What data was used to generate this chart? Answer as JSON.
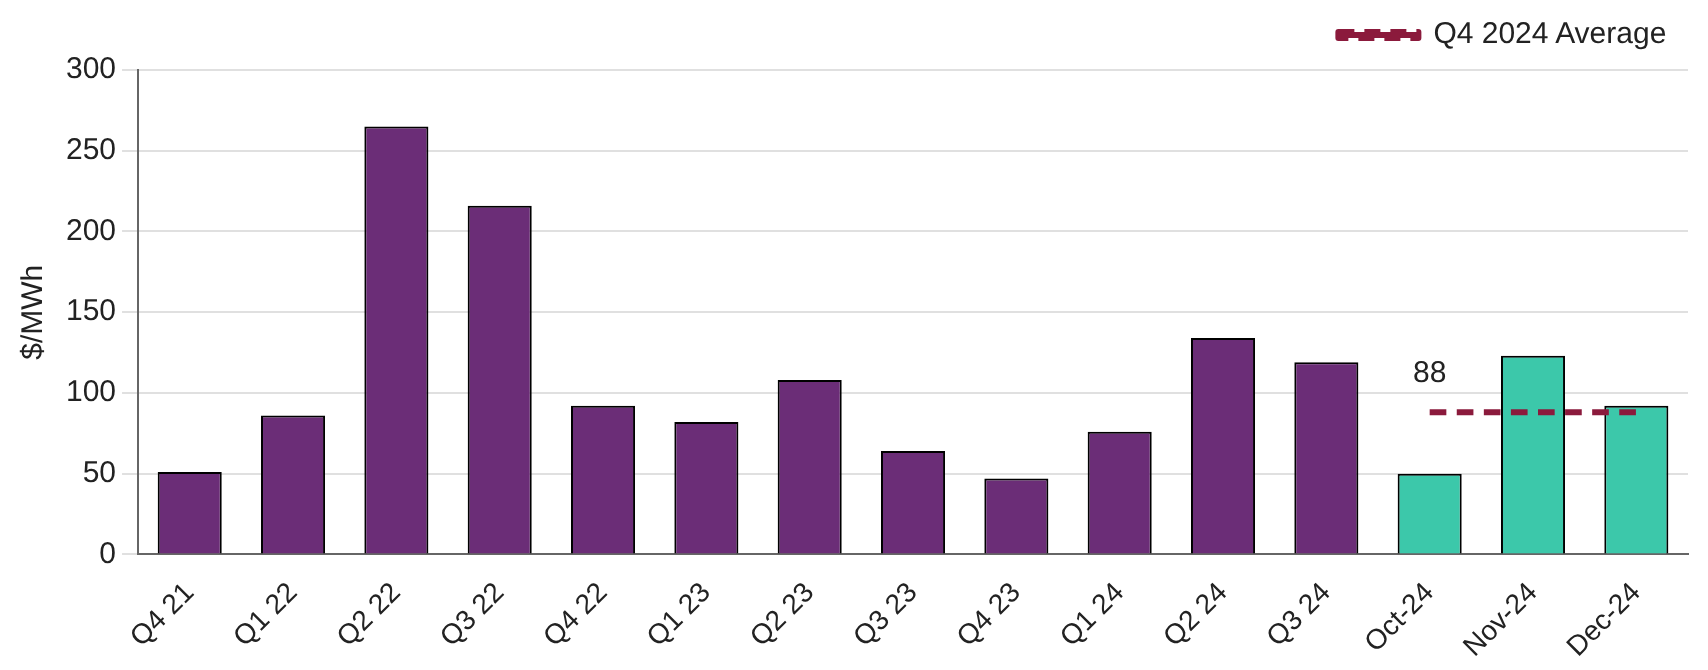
{
  "chart_data": {
    "type": "bar",
    "ylabel": "$/MWh",
    "categories": [
      "Q4 21",
      "Q1 22",
      "Q2 22",
      "Q3 22",
      "Q4 22",
      "Q1 23",
      "Q2 23",
      "Q3 23",
      "Q4 23",
      "Q1 24",
      "Q2 24",
      "Q3 24",
      "Oct-24",
      "Nov-24",
      "Dec-24"
    ],
    "series": [
      {
        "colors": [
          "#6b2d77",
          "#6b2d77",
          "#6b2d77",
          "#6b2d77",
          "#6b2d77",
          "#6b2d77",
          "#6b2d77",
          "#6b2d77",
          "#6b2d77",
          "#6b2d77",
          "#6b2d77",
          "#6b2d77",
          "#3cc8aa",
          "#3cc8aa",
          "#3cc8aa"
        ],
        "values": [
          51,
          86,
          265,
          216,
          92,
          82,
          108,
          64,
          47,
          76,
          134,
          119,
          50,
          123,
          92
        ]
      },
      {
        "type": "line",
        "name": "Q4 2024 Average",
        "color": "#8b1a3c",
        "line_style": "dashed",
        "marker": "none",
        "values": [
          null,
          null,
          null,
          null,
          null,
          null,
          null,
          null,
          null,
          null,
          null,
          null,
          88,
          88,
          88
        ],
        "value_labels": [
          null,
          null,
          null,
          null,
          null,
          null,
          null,
          null,
          null,
          null,
          null,
          null,
          "88",
          null,
          null
        ]
      }
    ],
    "ylim": [
      0,
      300
    ],
    "yticks": [
      0,
      50,
      100,
      150,
      200,
      250,
      300
    ],
    "grid": "y",
    "legend": "top right"
  }
}
